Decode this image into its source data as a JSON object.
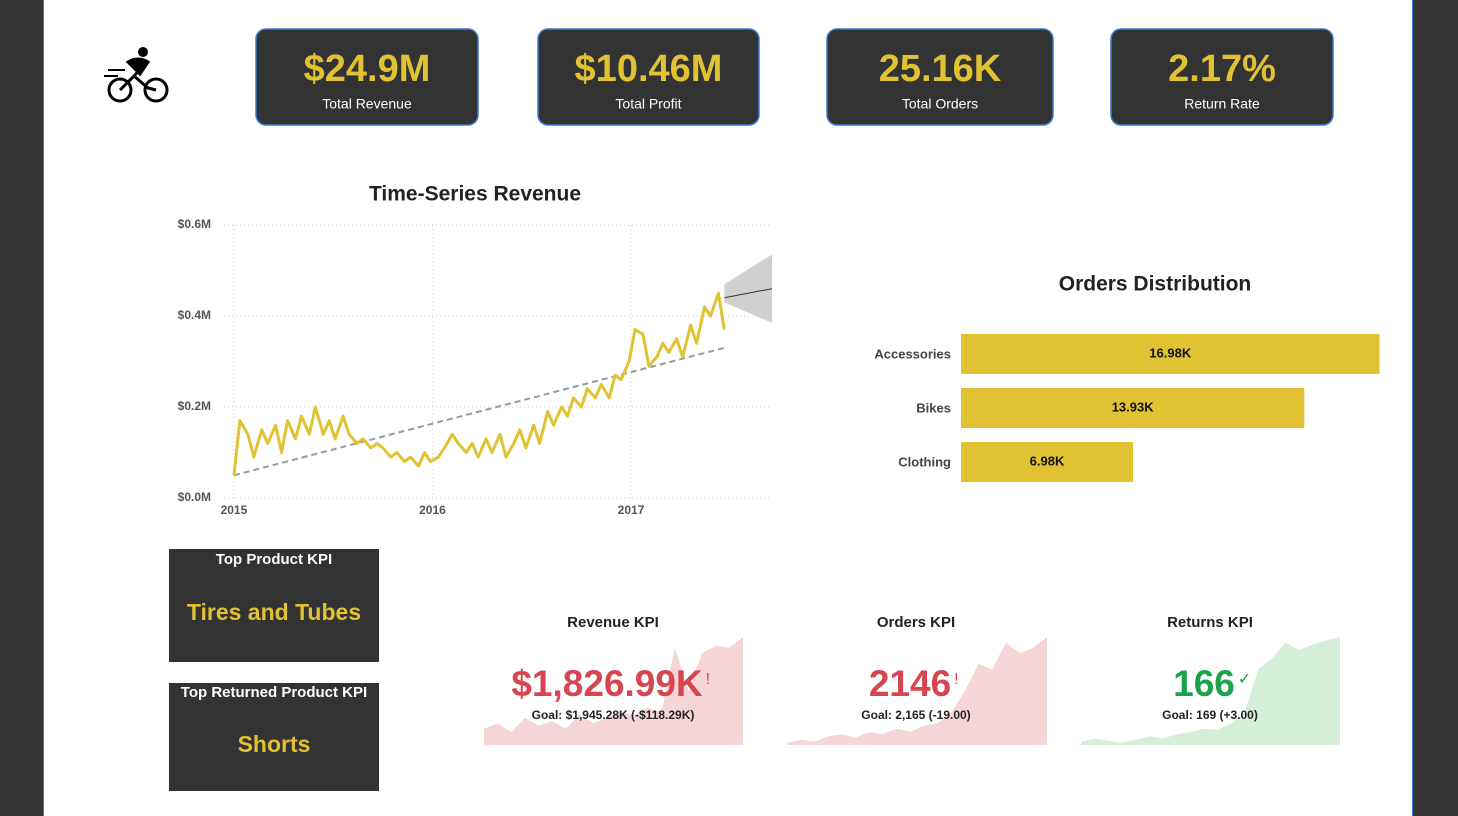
{
  "cards": [
    {
      "value": "$24.9M",
      "label": "Total Revenue"
    },
    {
      "value": "$10.46M",
      "label": "Total Profit"
    },
    {
      "value": "25.16K",
      "label": "Total Orders"
    },
    {
      "value": "2.17%",
      "label": "Return Rate"
    }
  ],
  "product_cards": [
    {
      "title": "Top Product KPI",
      "value": "Tires and Tubes"
    },
    {
      "title": "Top Returned Product KPI",
      "value": "Shorts"
    }
  ],
  "chart_data": [
    {
      "type": "line",
      "title": "Time-Series Revenue",
      "x": [
        2015,
        2015.03,
        2015.07,
        2015.1,
        2015.14,
        2015.17,
        2015.21,
        2015.24,
        2015.27,
        2015.31,
        2015.34,
        2015.38,
        2015.41,
        2015.45,
        2015.48,
        2015.51,
        2015.55,
        2015.58,
        2015.62,
        2015.65,
        2015.69,
        2015.72,
        2015.75,
        2015.79,
        2015.82,
        2015.86,
        2015.89,
        2015.93,
        2015.96,
        2015.99,
        2016.03,
        2016.06,
        2016.1,
        2016.13,
        2016.17,
        2016.2,
        2016.23,
        2016.27,
        2016.3,
        2016.34,
        2016.37,
        2016.41,
        2016.44,
        2016.47,
        2016.51,
        2016.54,
        2016.58,
        2016.61,
        2016.65,
        2016.68,
        2016.71,
        2016.75,
        2016.78,
        2016.82,
        2016.85,
        2016.89,
        2016.92,
        2016.95,
        2016.99,
        2017.02,
        2017.06,
        2017.09,
        2017.13,
        2017.16,
        2017.19,
        2017.23,
        2017.26,
        2017.3,
        2017.33,
        2017.37,
        2017.4,
        2017.44,
        2017.47
      ],
      "series": [
        {
          "color": "#e0c232",
          "values": [
            0.05,
            0.17,
            0.14,
            0.09,
            0.15,
            0.12,
            0.16,
            0.1,
            0.17,
            0.13,
            0.18,
            0.14,
            0.2,
            0.14,
            0.17,
            0.13,
            0.18,
            0.14,
            0.12,
            0.13,
            0.11,
            0.12,
            0.11,
            0.09,
            0.1,
            0.08,
            0.09,
            0.07,
            0.1,
            0.08,
            0.09,
            0.11,
            0.14,
            0.12,
            0.1,
            0.12,
            0.09,
            0.13,
            0.1,
            0.14,
            0.09,
            0.12,
            0.15,
            0.11,
            0.16,
            0.12,
            0.19,
            0.16,
            0.2,
            0.18,
            0.22,
            0.2,
            0.24,
            0.22,
            0.25,
            0.22,
            0.27,
            0.26,
            0.3,
            0.37,
            0.36,
            0.29,
            0.31,
            0.34,
            0.32,
            0.35,
            0.31,
            0.38,
            0.34,
            0.42,
            0.4,
            0.45,
            0.37
          ]
        }
      ],
      "trend": {
        "color": "#999999",
        "x": [
          2015,
          2017.47
        ],
        "values": [
          0.05,
          0.33
        ]
      },
      "forecast": {
        "color": "#333333",
        "band_color": "#d0d0d0",
        "x": [
          2017.47,
          2017.71
        ],
        "values": [
          0.44,
          0.46
        ],
        "lower": [
          0.43,
          0.385
        ],
        "upper": [
          0.47,
          0.535
        ]
      },
      "xlim": [
        2014.95,
        2017.71
      ],
      "xticks": [
        2015,
        2016,
        2017
      ],
      "ylim": [
        0,
        0.6
      ],
      "yticks": [
        {
          "value": 0,
          "label": "$0.0M"
        },
        {
          "value": 0.2,
          "label": "$0.2M"
        },
        {
          "value": 0.4,
          "label": "$0.4M"
        },
        {
          "value": 0.6,
          "label": "$0.6M"
        }
      ],
      "grid": true
    },
    {
      "type": "hbar",
      "title": "Orders Distribution",
      "categories": [
        "Accessories",
        "Bikes",
        "Clothing"
      ],
      "values": [
        16.98,
        13.93,
        6.98
      ],
      "value_labels": [
        "16.98K",
        "13.93K",
        "6.98K"
      ],
      "color": "#e0c232",
      "xlim": [
        0,
        17
      ]
    },
    {
      "type": "kpi",
      "title": "Revenue KPI",
      "value": "$1,826.99K",
      "status": "!",
      "goal": "Goal: $1,945.28K (-$118.29K)",
      "color": "#d64550",
      "area_color": "#f6d5d8",
      "values": [
        0.15,
        0.2,
        0.12,
        0.25,
        0.18,
        0.22,
        0.15,
        0.28,
        0.2,
        0.25,
        0.3,
        0.28,
        0.35,
        0.3,
        0.9,
        0.5,
        0.85,
        0.92,
        0.9,
        1.0
      ]
    },
    {
      "type": "kpi",
      "title": "Orders KPI",
      "value": "2146",
      "status": "!",
      "goal": "Goal: 2,165 (-19.00)",
      "color": "#d64550",
      "area_color": "#f6d5d8",
      "values": [
        0.02,
        0.05,
        0.03,
        0.08,
        0.1,
        0.07,
        0.12,
        0.1,
        0.15,
        0.12,
        0.18,
        0.2,
        0.3,
        0.5,
        0.75,
        0.7,
        0.95,
        0.85,
        0.9,
        1.0
      ]
    },
    {
      "type": "kpi",
      "title": "Returns KPI",
      "value": "166",
      "status": "✓",
      "goal": "Goal: 169 (+3.00)",
      "color": "#1aa14a",
      "area_color": "#d5efd9",
      "values": [
        0.03,
        0.06,
        0.04,
        0.02,
        0.05,
        0.08,
        0.06,
        0.1,
        0.12,
        0.15,
        0.14,
        0.2,
        0.3,
        0.7,
        0.8,
        0.95,
        0.88,
        0.93,
        0.97,
        1.0
      ]
    }
  ]
}
